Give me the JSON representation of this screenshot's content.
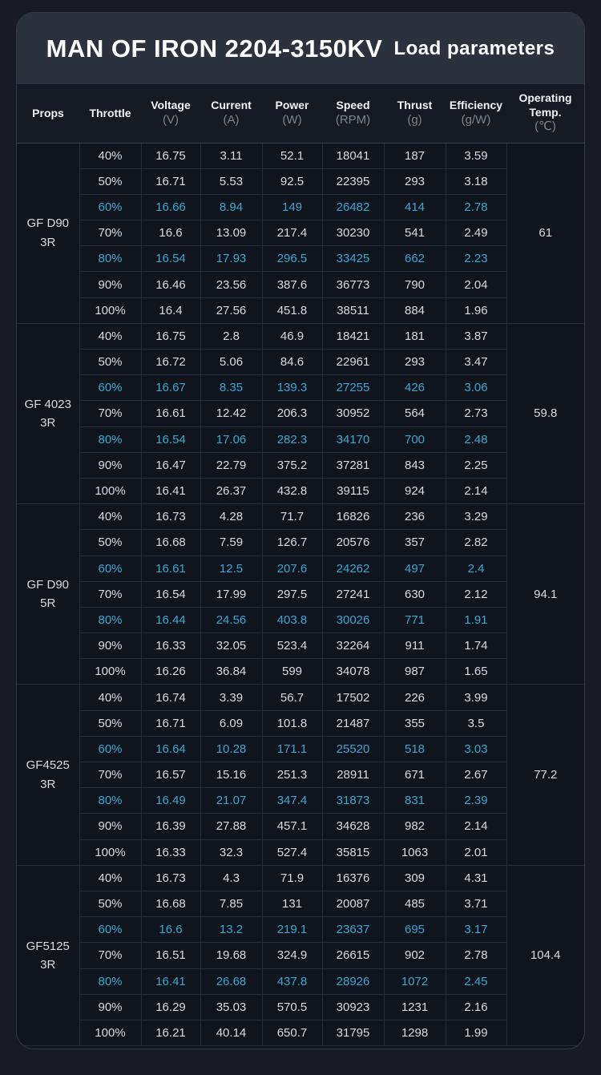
{
  "title": {
    "main": "MAN OF IRON 2204-3150KV",
    "sub": "Load parameters"
  },
  "colors": {
    "highlight": "#39a7d5",
    "title_band": "#2b313d",
    "card_bg": "#10141c",
    "page_bg": "#181b24"
  },
  "columns": [
    {
      "label": "Props",
      "unit": ""
    },
    {
      "label": "Throttle",
      "unit": ""
    },
    {
      "label": "Voltage",
      "unit": "(V)"
    },
    {
      "label": "Current",
      "unit": "(A)"
    },
    {
      "label": "Power",
      "unit": "(W)"
    },
    {
      "label": "Speed",
      "unit": "(RPM)"
    },
    {
      "label": "Thrust",
      "unit": "(g)"
    },
    {
      "label": "Efficiency",
      "unit": "(g/W)"
    },
    {
      "label": "Operating Temp.",
      "unit": "(℃)"
    }
  ],
  "groups": [
    {
      "prop": [
        "GF D90",
        "3R"
      ],
      "temp": "61",
      "rows": [
        {
          "throttle": "40%",
          "voltage": "16.75",
          "current": "3.11",
          "power": "52.1",
          "speed": "18041",
          "thrust": "187",
          "efficiency": "3.59",
          "highlight": false
        },
        {
          "throttle": "50%",
          "voltage": "16.71",
          "current": "5.53",
          "power": "92.5",
          "speed": "22395",
          "thrust": "293",
          "efficiency": "3.18",
          "highlight": false
        },
        {
          "throttle": "60%",
          "voltage": "16.66",
          "current": "8.94",
          "power": "149",
          "speed": "26482",
          "thrust": "414",
          "efficiency": "2.78",
          "highlight": true
        },
        {
          "throttle": "70%",
          "voltage": "16.6",
          "current": "13.09",
          "power": "217.4",
          "speed": "30230",
          "thrust": "541",
          "efficiency": "2.49",
          "highlight": false
        },
        {
          "throttle": "80%",
          "voltage": "16.54",
          "current": "17.93",
          "power": "296.5",
          "speed": "33425",
          "thrust": "662",
          "efficiency": "2.23",
          "highlight": true
        },
        {
          "throttle": "90%",
          "voltage": "16.46",
          "current": "23.56",
          "power": "387.6",
          "speed": "36773",
          "thrust": "790",
          "efficiency": "2.04",
          "highlight": false
        },
        {
          "throttle": "100%",
          "voltage": "16.4",
          "current": "27.56",
          "power": "451.8",
          "speed": "38511",
          "thrust": "884",
          "efficiency": "1.96",
          "highlight": false
        }
      ]
    },
    {
      "prop": [
        "GF 4023",
        "3R"
      ],
      "temp": "59.8",
      "rows": [
        {
          "throttle": "40%",
          "voltage": "16.75",
          "current": "2.8",
          "power": "46.9",
          "speed": "18421",
          "thrust": "181",
          "efficiency": "3.87",
          "highlight": false
        },
        {
          "throttle": "50%",
          "voltage": "16.72",
          "current": "5.06",
          "power": "84.6",
          "speed": "22961",
          "thrust": "293",
          "efficiency": "3.47",
          "highlight": false
        },
        {
          "throttle": "60%",
          "voltage": "16.67",
          "current": "8.35",
          "power": "139.3",
          "speed": "27255",
          "thrust": "426",
          "efficiency": "3.06",
          "highlight": true
        },
        {
          "throttle": "70%",
          "voltage": "16.61",
          "current": "12.42",
          "power": "206.3",
          "speed": "30952",
          "thrust": "564",
          "efficiency": "2.73",
          "highlight": false
        },
        {
          "throttle": "80%",
          "voltage": "16.54",
          "current": "17.06",
          "power": "282.3",
          "speed": "34170",
          "thrust": "700",
          "efficiency": "2.48",
          "highlight": true
        },
        {
          "throttle": "90%",
          "voltage": "16.47",
          "current": "22.79",
          "power": "375.2",
          "speed": "37281",
          "thrust": "843",
          "efficiency": "2.25",
          "highlight": false
        },
        {
          "throttle": "100%",
          "voltage": "16.41",
          "current": "26.37",
          "power": "432.8",
          "speed": "39115",
          "thrust": "924",
          "efficiency": "2.14",
          "highlight": false
        }
      ]
    },
    {
      "prop": [
        "GF D90",
        "5R"
      ],
      "temp": "94.1",
      "rows": [
        {
          "throttle": "40%",
          "voltage": "16.73",
          "current": "4.28",
          "power": "71.7",
          "speed": "16826",
          "thrust": "236",
          "efficiency": "3.29",
          "highlight": false
        },
        {
          "throttle": "50%",
          "voltage": "16.68",
          "current": "7.59",
          "power": "126.7",
          "speed": "20576",
          "thrust": "357",
          "efficiency": "2.82",
          "highlight": false
        },
        {
          "throttle": "60%",
          "voltage": "16.61",
          "current": "12.5",
          "power": "207.6",
          "speed": "24262",
          "thrust": "497",
          "efficiency": "2.4",
          "highlight": true
        },
        {
          "throttle": "70%",
          "voltage": "16.54",
          "current": "17.99",
          "power": "297.5",
          "speed": "27241",
          "thrust": "630",
          "efficiency": "2.12",
          "highlight": false
        },
        {
          "throttle": "80%",
          "voltage": "16.44",
          "current": "24.56",
          "power": "403.8",
          "speed": "30026",
          "thrust": "771",
          "efficiency": "1.91",
          "highlight": true
        },
        {
          "throttle": "90%",
          "voltage": "16.33",
          "current": "32.05",
          "power": "523.4",
          "speed": "32264",
          "thrust": "911",
          "efficiency": "1.74",
          "highlight": false
        },
        {
          "throttle": "100%",
          "voltage": "16.26",
          "current": "36.84",
          "power": "599",
          "speed": "34078",
          "thrust": "987",
          "efficiency": "1.65",
          "highlight": false
        }
      ]
    },
    {
      "prop": [
        "GF4525",
        "3R"
      ],
      "temp": "77.2",
      "rows": [
        {
          "throttle": "40%",
          "voltage": "16.74",
          "current": "3.39",
          "power": "56.7",
          "speed": "17502",
          "thrust": "226",
          "efficiency": "3.99",
          "highlight": false
        },
        {
          "throttle": "50%",
          "voltage": "16.71",
          "current": "6.09",
          "power": "101.8",
          "speed": "21487",
          "thrust": "355",
          "efficiency": "3.5",
          "highlight": false
        },
        {
          "throttle": "60%",
          "voltage": "16.64",
          "current": "10.28",
          "power": "171.1",
          "speed": "25520",
          "thrust": "518",
          "efficiency": "3.03",
          "highlight": true
        },
        {
          "throttle": "70%",
          "voltage": "16.57",
          "current": "15.16",
          "power": "251.3",
          "speed": "28911",
          "thrust": "671",
          "efficiency": "2.67",
          "highlight": false
        },
        {
          "throttle": "80%",
          "voltage": "16.49",
          "current": "21.07",
          "power": "347.4",
          "speed": "31873",
          "thrust": "831",
          "efficiency": "2.39",
          "highlight": true
        },
        {
          "throttle": "90%",
          "voltage": "16.39",
          "current": "27.88",
          "power": "457.1",
          "speed": "34628",
          "thrust": "982",
          "efficiency": "2.14",
          "highlight": false
        },
        {
          "throttle": "100%",
          "voltage": "16.33",
          "current": "32.3",
          "power": "527.4",
          "speed": "35815",
          "thrust": "1063",
          "efficiency": "2.01",
          "highlight": false
        }
      ]
    },
    {
      "prop": [
        "GF5125",
        "3R"
      ],
      "temp": "104.4",
      "rows": [
        {
          "throttle": "40%",
          "voltage": "16.73",
          "current": "4.3",
          "power": "71.9",
          "speed": "16376",
          "thrust": "309",
          "efficiency": "4.31",
          "highlight": false
        },
        {
          "throttle": "50%",
          "voltage": "16.68",
          "current": "7.85",
          "power": "131",
          "speed": "20087",
          "thrust": "485",
          "efficiency": "3.71",
          "highlight": false
        },
        {
          "throttle": "60%",
          "voltage": "16.6",
          "current": "13.2",
          "power": "219.1",
          "speed": "23637",
          "thrust": "695",
          "efficiency": "3.17",
          "highlight": true
        },
        {
          "throttle": "70%",
          "voltage": "16.51",
          "current": "19.68",
          "power": "324.9",
          "speed": "26615",
          "thrust": "902",
          "efficiency": "2.78",
          "highlight": false
        },
        {
          "throttle": "80%",
          "voltage": "16.41",
          "current": "26.68",
          "power": "437.8",
          "speed": "28926",
          "thrust": "1072",
          "efficiency": "2.45",
          "highlight": true
        },
        {
          "throttle": "90%",
          "voltage": "16.29",
          "current": "35.03",
          "power": "570.5",
          "speed": "30923",
          "thrust": "1231",
          "efficiency": "2.16",
          "highlight": false
        },
        {
          "throttle": "100%",
          "voltage": "16.21",
          "current": "40.14",
          "power": "650.7",
          "speed": "31795",
          "thrust": "1298",
          "efficiency": "1.99",
          "highlight": false
        }
      ]
    }
  ]
}
